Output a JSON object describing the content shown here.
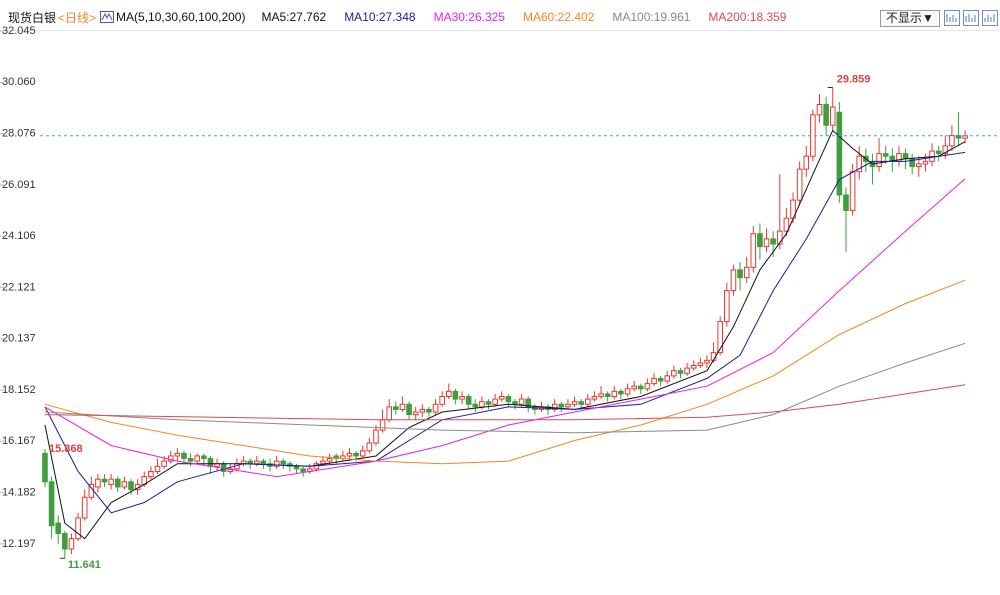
{
  "chart_data": {
    "type": "candlestick",
    "instrument": "现货白银",
    "period": "<日线>",
    "indicator": "MA(5,10,30,60,100,200)",
    "hide_button": "不显示▼",
    "up_color": "#e8382f",
    "down_color": "#3f9e3f",
    "last_price_line_color": "#3b9fd6",
    "ylim": [
      10.8,
      32.045
    ],
    "yticks": [
      32.045,
      {
        "value": 30.06,
        "label": "30.060"
      },
      28.076,
      26.091,
      24.106,
      22.121,
      20.137,
      18.152,
      16.167,
      14.182,
      12.197
    ],
    "xlim": [
      -0.75,
      142
    ],
    "open": [
      15.7,
      14.6,
      13.0,
      12.6,
      12.0,
      12.4,
      13.2,
      14.0,
      14.4,
      14.7,
      14.5,
      14.7,
      14.4,
      14.6,
      14.3,
      14.5,
      14.8,
      15.0,
      15.2,
      15.4,
      15.6,
      15.7,
      15.5,
      15.4,
      15.6,
      15.5,
      15.2,
      15.3,
      15.0,
      15.1,
      15.3,
      15.4,
      15.3,
      15.4,
      15.3,
      15.2,
      15.4,
      15.3,
      15.2,
      15.1,
      15.0,
      15.1,
      15.3,
      15.4,
      15.6,
      15.5,
      15.6,
      15.7,
      15.6,
      15.8,
      16.1,
      16.6,
      17.0,
      17.5,
      17.4,
      17.6,
      17.2,
      17.3,
      17.4,
      17.3,
      17.6,
      17.9,
      18.1,
      17.8,
      17.9,
      17.6,
      17.5,
      17.7,
      17.6,
      17.8,
      17.9,
      17.7,
      17.6,
      17.8,
      17.5,
      17.4,
      17.5,
      17.4,
      17.6,
      17.5,
      17.6,
      17.7,
      17.6,
      17.8,
      17.9,
      18.0,
      17.9,
      18.1,
      18.0,
      18.2,
      18.3,
      18.2,
      18.4,
      18.6,
      18.5,
      18.7,
      18.9,
      18.8,
      19.0,
      19.1,
      19.2,
      19.3,
      19.6,
      20.8,
      22.0,
      22.8,
      22.5,
      22.9,
      24.2,
      23.7,
      24.0,
      23.8,
      24.3,
      24.8,
      25.5,
      26.7,
      27.2,
      28.8,
      29.2,
      28.4,
      28.9,
      25.7,
      25.1,
      26.6,
      27.2,
      27.0,
      26.8,
      27.3,
      27.2,
      27.0,
      27.3,
      27.1,
      26.8,
      26.9,
      27.0,
      27.4,
      27.3,
      27.6,
      28.0,
      27.9
    ],
    "high": [
      15.868,
      14.8,
      13.3,
      12.7,
      12.6,
      13.4,
      14.3,
      14.8,
      14.9,
      14.9,
      14.9,
      14.8,
      14.8,
      14.7,
      14.7,
      15.0,
      15.2,
      15.5,
      15.6,
      15.8,
      15.9,
      15.8,
      15.7,
      15.7,
      15.7,
      15.6,
      15.5,
      15.4,
      15.3,
      15.5,
      15.6,
      15.5,
      15.6,
      15.5,
      15.5,
      15.6,
      15.5,
      15.4,
      15.3,
      15.2,
      15.3,
      15.4,
      15.6,
      15.7,
      15.7,
      15.8,
      15.9,
      15.8,
      16.0,
      16.3,
      16.8,
      17.4,
      17.8,
      17.7,
      17.9,
      17.7,
      17.5,
      17.6,
      17.5,
      17.8,
      18.1,
      18.4,
      18.2,
      18.1,
      18.0,
      17.8,
      17.9,
      17.8,
      18.0,
      18.1,
      18.0,
      17.8,
      18.0,
      17.9,
      17.6,
      17.7,
      17.6,
      17.8,
      17.7,
      17.8,
      17.9,
      17.8,
      18.0,
      18.1,
      18.3,
      18.1,
      18.3,
      18.2,
      18.4,
      18.5,
      18.4,
      18.6,
      18.8,
      18.7,
      18.9,
      19.1,
      19.0,
      19.2,
      19.3,
      19.4,
      19.5,
      20.0,
      21.0,
      22.3,
      23.0,
      23.1,
      23.3,
      24.5,
      24.6,
      24.4,
      24.3,
      26.5,
      25.2,
      25.8,
      27.0,
      27.6,
      29.0,
      29.6,
      29.5,
      29.859,
      29.3,
      26.0,
      26.9,
      27.6,
      27.5,
      27.3,
      27.9,
      27.6,
      27.5,
      27.6,
      27.5,
      27.3,
      27.2,
      27.3,
      27.7,
      27.6,
      28.0,
      28.4,
      28.9,
      28.2
    ],
    "low": [
      14.4,
      12.4,
      12.2,
      11.641,
      11.8,
      12.3,
      13.1,
      13.9,
      14.2,
      14.4,
      14.3,
      14.2,
      14.3,
      14.1,
      14.1,
      14.4,
      14.7,
      14.9,
      15.1,
      15.3,
      15.4,
      15.3,
      15.2,
      15.3,
      15.2,
      14.9,
      15.0,
      14.8,
      14.9,
      15.0,
      15.2,
      15.1,
      15.2,
      15.1,
      15.0,
      15.1,
      15.1,
      15.0,
      14.9,
      14.8,
      14.9,
      15.0,
      15.2,
      15.3,
      15.3,
      15.4,
      15.5,
      15.4,
      15.5,
      15.7,
      16.0,
      16.5,
      16.9,
      17.2,
      17.3,
      17.0,
      17.0,
      17.1,
      17.1,
      17.2,
      17.5,
      17.8,
      17.6,
      17.6,
      17.4,
      17.3,
      17.4,
      17.4,
      17.5,
      17.7,
      17.5,
      17.4,
      17.5,
      17.3,
      17.2,
      17.3,
      17.2,
      17.3,
      17.3,
      17.4,
      17.5,
      17.4,
      17.5,
      17.7,
      17.8,
      17.7,
      17.8,
      17.8,
      17.9,
      18.1,
      18.0,
      18.1,
      18.3,
      18.3,
      18.4,
      18.6,
      18.6,
      18.7,
      18.9,
      19.0,
      19.0,
      19.2,
      19.5,
      20.6,
      21.8,
      22.0,
      22.3,
      22.7,
      23.2,
      23.5,
      23.3,
      23.6,
      24.1,
      24.6,
      25.3,
      26.4,
      27.0,
      28.5,
      28.0,
      28.2,
      25.4,
      23.5,
      24.9,
      26.3,
      26.6,
      26.1,
      26.6,
      26.9,
      26.6,
      26.8,
      26.7,
      26.5,
      26.4,
      26.6,
      26.8,
      27.0,
      27.1,
      27.4,
      27.6,
      27.7
    ],
    "close": [
      14.6,
      12.9,
      12.6,
      12.0,
      12.4,
      13.2,
      14.0,
      14.5,
      14.7,
      14.6,
      14.7,
      14.4,
      14.6,
      14.3,
      14.5,
      14.8,
      15.0,
      15.2,
      15.4,
      15.6,
      15.7,
      15.5,
      15.4,
      15.6,
      15.5,
      15.2,
      15.3,
      15.0,
      15.1,
      15.3,
      15.4,
      15.3,
      15.4,
      15.3,
      15.2,
      15.4,
      15.3,
      15.2,
      15.1,
      15.0,
      15.1,
      15.3,
      15.4,
      15.5,
      15.5,
      15.6,
      15.7,
      15.6,
      15.8,
      16.1,
      16.6,
      17.0,
      17.5,
      17.4,
      17.6,
      17.2,
      17.3,
      17.4,
      17.3,
      17.6,
      17.9,
      18.1,
      17.8,
      17.9,
      17.6,
      17.5,
      17.7,
      17.6,
      17.8,
      17.9,
      17.7,
      17.6,
      17.8,
      17.5,
      17.4,
      17.5,
      17.4,
      17.6,
      17.5,
      17.6,
      17.7,
      17.6,
      17.8,
      17.9,
      18.0,
      17.9,
      18.1,
      18.0,
      18.2,
      18.3,
      18.2,
      18.4,
      18.6,
      18.5,
      18.7,
      18.9,
      18.8,
      19.0,
      19.1,
      19.2,
      19.3,
      19.6,
      20.8,
      22.0,
      22.8,
      22.5,
      22.9,
      24.2,
      23.7,
      24.0,
      23.8,
      24.3,
      24.8,
      25.5,
      26.7,
      27.2,
      28.8,
      29.2,
      28.4,
      29.1,
      25.7,
      25.1,
      26.6,
      27.2,
      27.0,
      26.8,
      27.3,
      27.2,
      27.0,
      27.3,
      27.1,
      26.8,
      26.9,
      27.0,
      27.4,
      27.3,
      27.6,
      28.0,
      27.9,
      27.99
    ],
    "series": [
      {
        "name": "MA5:",
        "color": "#111111",
        "x": [
          0,
          3,
          6,
          10,
          15,
          20,
          30,
          40,
          50,
          55,
          60,
          70,
          80,
          90,
          100,
          104,
          108,
          112,
          116,
          119,
          122,
          125,
          130,
          135,
          139
        ],
        "values": [
          16.8,
          13.0,
          12.4,
          13.8,
          14.5,
          15.3,
          15.3,
          15.2,
          15.6,
          16.7,
          17.3,
          17.6,
          17.4,
          17.9,
          18.9,
          20.6,
          22.8,
          24.2,
          26.5,
          28.2,
          27.5,
          26.9,
          27.1,
          27.2,
          27.762
        ]
      },
      {
        "name": "MA10:",
        "color": "#1c1c9c",
        "x": [
          0,
          5,
          10,
          15,
          20,
          30,
          40,
          50,
          55,
          60,
          70,
          80,
          90,
          100,
          105,
          110,
          115,
          120,
          125,
          130,
          139
        ],
        "values": [
          17.5,
          15.0,
          13.4,
          13.8,
          14.6,
          15.3,
          15.2,
          15.4,
          16.2,
          17.0,
          17.5,
          17.4,
          17.6,
          18.6,
          19.5,
          22.0,
          24.0,
          26.3,
          27.0,
          27.0,
          27.348
        ]
      },
      {
        "name": "MA30:",
        "color": "#e622e6",
        "x": [
          0,
          10,
          20,
          30,
          35,
          40,
          50,
          60,
          70,
          80,
          90,
          100,
          110,
          120,
          130,
          139
        ],
        "values": [
          17.5,
          16.0,
          15.4,
          15.0,
          14.8,
          15.0,
          15.4,
          16.0,
          16.8,
          17.3,
          17.8,
          18.3,
          19.6,
          22.0,
          24.3,
          26.325
        ]
      },
      {
        "name": "MA60:",
        "color": "#f5861f",
        "x": [
          0,
          10,
          20,
          30,
          40,
          50,
          60,
          70,
          80,
          90,
          100,
          110,
          120,
          130,
          139
        ],
        "values": [
          17.6,
          16.9,
          16.4,
          16.0,
          15.6,
          15.4,
          15.3,
          15.4,
          16.2,
          16.8,
          17.6,
          18.7,
          20.3,
          21.5,
          22.402
        ]
      },
      {
        "name": "MA100:",
        "color": "#8a8a8a",
        "x": [
          0,
          20,
          40,
          60,
          80,
          100,
          110,
          120,
          130,
          139
        ],
        "values": [
          17.3,
          17.0,
          16.8,
          16.6,
          16.5,
          16.6,
          17.2,
          18.3,
          19.2,
          19.961
        ]
      },
      {
        "name": "MA200:",
        "color": "#e04a4a",
        "x": [
          0,
          50,
          80,
          100,
          110,
          120,
          130,
          139
        ],
        "values": [
          17.2,
          17.0,
          17.0,
          17.1,
          17.3,
          17.6,
          18.0,
          18.359
        ]
      }
    ]
  }
}
